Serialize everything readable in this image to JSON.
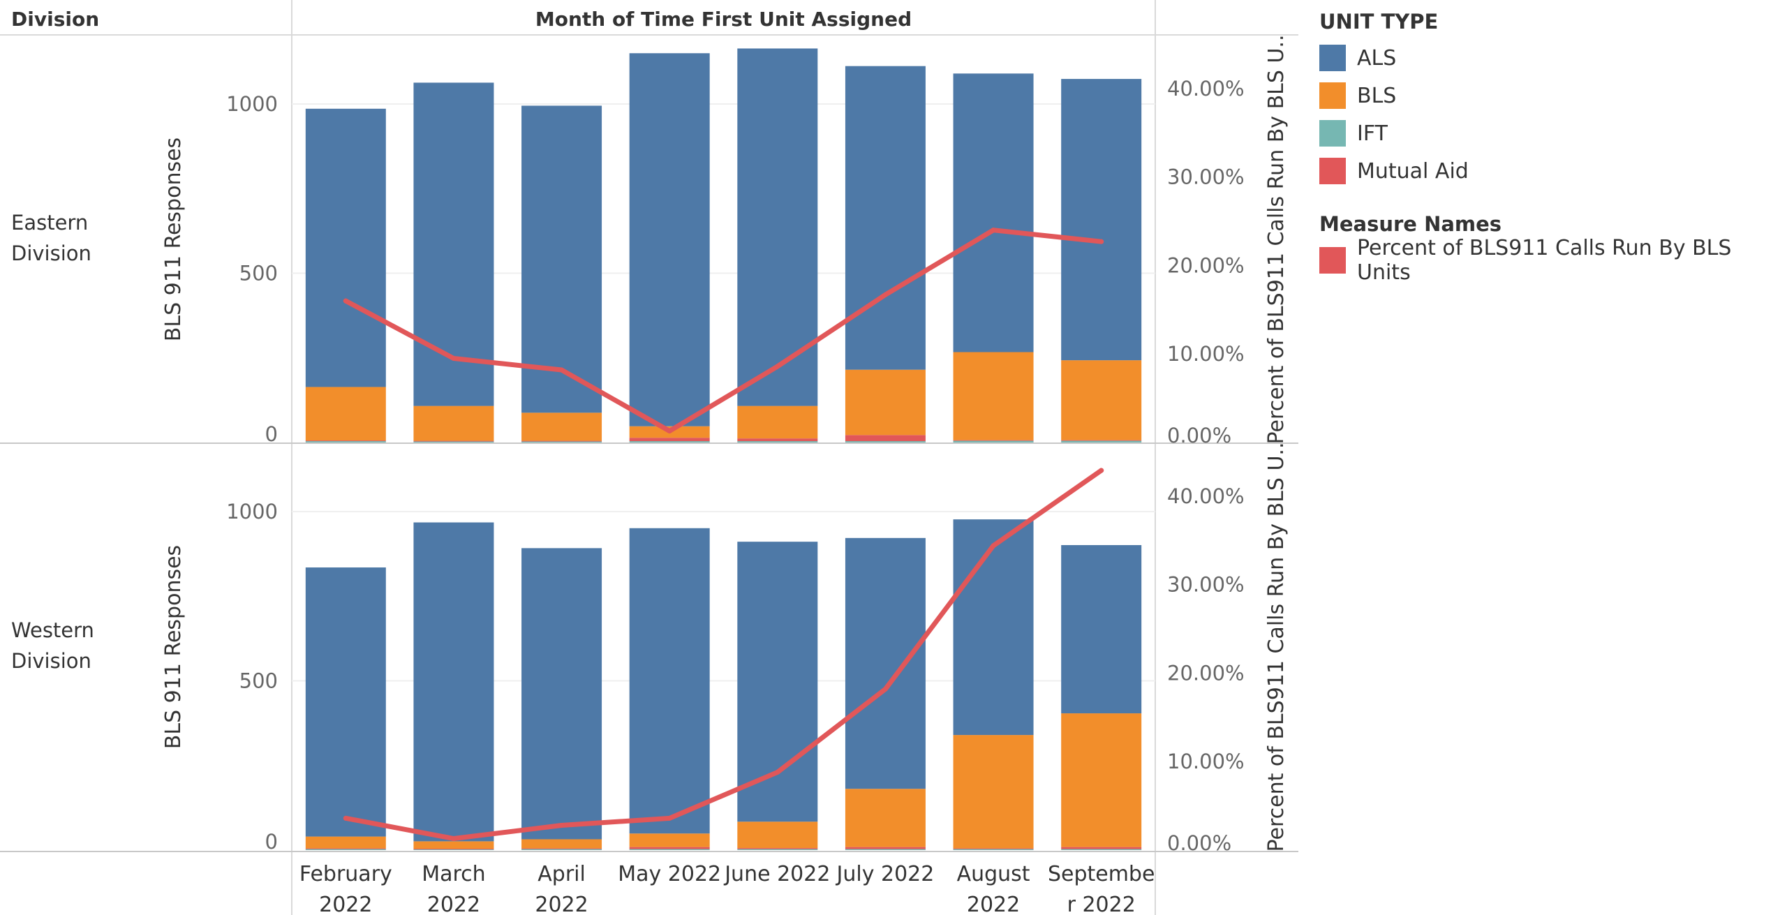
{
  "header": {
    "division_label": "Division",
    "column_title": "Month of Time First Unit Assigned"
  },
  "legend": {
    "unit_type_title": "UNIT TYPE",
    "unit_types": [
      {
        "label": "ALS",
        "color": "#4e79a7"
      },
      {
        "label": "BLS",
        "color": "#f28e2b"
      },
      {
        "label": "IFT",
        "color": "#76b7b2"
      },
      {
        "label": "Mutual Aid",
        "color": "#e15759"
      }
    ],
    "measure_names_title": "Measure Names",
    "measures": [
      {
        "label": "Percent of BLS911 Calls Run By BLS Units",
        "color": "#e15759"
      }
    ]
  },
  "chart_data": {
    "type": "bar",
    "stacked": true,
    "dual_axis": true,
    "x_title": "Month of Time First Unit Assigned",
    "categories": [
      "February 2022",
      "March 2022",
      "April 2022",
      "May 2022",
      "June 2022",
      "July 2022",
      "August 2022",
      "September 2022"
    ],
    "category_labels": [
      [
        "February",
        "2022"
      ],
      [
        "March",
        "2022"
      ],
      [
        "April",
        "2022"
      ],
      [
        "May 2022"
      ],
      [
        "June 2022"
      ],
      [
        "July 2022"
      ],
      [
        "August",
        "2022"
      ],
      [
        "Septembe",
        "r 2022"
      ]
    ],
    "y_left_label": "BLS 911 Responses",
    "y_left_ticks": [
      0,
      500,
      1000
    ],
    "y_left_range": [
      0,
      1200
    ],
    "y_right_label": "Percent of BLS911 Calls Run By BLS U..",
    "y_right_ticks": [
      0,
      10,
      20,
      30,
      40
    ],
    "y_right_tick_labels": [
      "0.00%",
      "10.00%",
      "20.00%",
      "30.00%",
      "40.00%"
    ],
    "y_right_range": [
      0,
      45.9
    ],
    "grid": true,
    "legend_position": "right",
    "panels": [
      {
        "division": "Eastern Division",
        "division_lines": [
          "Eastern",
          "Division"
        ],
        "series": [
          {
            "name": "IFT",
            "color": "#76b7b2",
            "values": [
              4,
              3,
              3,
              4,
              4,
              4,
              5,
              5
            ]
          },
          {
            "name": "Mutual Aid",
            "color": "#e15759",
            "values": [
              2,
              2,
              2,
              10,
              8,
              18,
              2,
              2
            ]
          },
          {
            "name": "BLS",
            "color": "#f28e2b",
            "values": [
              158,
              103,
              83,
              34,
              96,
              193,
              260,
              236
            ]
          },
          {
            "name": "ALS",
            "color": "#4e79a7",
            "values": [
              822,
              955,
              907,
              1102,
              1056,
              897,
              823,
              831
            ]
          }
        ],
        "line": {
          "name": "Percent of BLS911 Calls Run By BLS Units",
          "color": "#e15759",
          "values": [
            16.0,
            9.5,
            8.2,
            1.3,
            8.6,
            16.7,
            24.0,
            22.7
          ]
        }
      },
      {
        "division": "Western Division",
        "division_lines": [
          "Western",
          "Division"
        ],
        "series": [
          {
            "name": "IFT",
            "color": "#76b7b2",
            "values": [
              3,
              2,
              3,
              3,
              3,
              3,
              3,
              3
            ]
          },
          {
            "name": "Mutual Aid",
            "color": "#e15759",
            "values": [
              2,
              2,
              2,
              6,
              3,
              6,
              2,
              6
            ]
          },
          {
            "name": "BLS",
            "color": "#f28e2b",
            "values": [
              35,
              22,
              27,
              40,
              78,
              172,
              335,
              395
            ]
          },
          {
            "name": "ALS",
            "color": "#4e79a7",
            "values": [
              795,
              942,
              860,
              902,
              827,
              741,
              637,
              497
            ]
          }
        ],
        "line": {
          "name": "Percent of BLS911 Calls Run By BLS Units",
          "color": "#e15759",
          "values": [
            3.6,
            1.3,
            2.8,
            3.6,
            8.8,
            18.2,
            34.4,
            42.9
          ]
        }
      }
    ]
  }
}
